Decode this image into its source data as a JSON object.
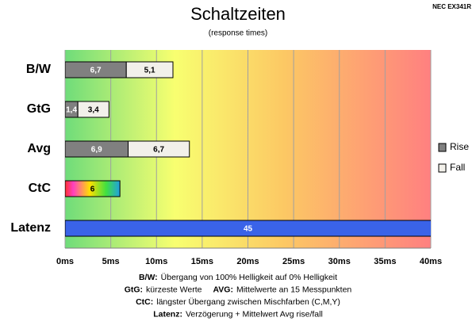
{
  "chart_data": {
    "type": "hbar_stacked",
    "title": "Schaltzeiten",
    "subtitle": "(response times)",
    "corner_label": "NEC EX341R",
    "categories": [
      "B/W",
      "GtG",
      "Avg",
      "CtC",
      "Latenz"
    ],
    "series": [
      {
        "name": "Rise",
        "color": "#808080",
        "values": [
          6.7,
          1.4,
          6.9,
          null,
          null
        ],
        "value_labels": [
          "6,7",
          "1,4",
          "6,9",
          null,
          null
        ]
      },
      {
        "name": "Fall",
        "color": "#f2f0ea",
        "values": [
          5.1,
          3.4,
          6.7,
          null,
          null
        ],
        "value_labels": [
          "5,1",
          "3,4",
          "6,7",
          null,
          null
        ]
      }
    ],
    "extra_bars": [
      {
        "fill": "rainbow",
        "values": [
          null,
          null,
          null,
          6,
          null
        ]
      },
      {
        "color": "#3a63e8",
        "values": [
          null,
          null,
          null,
          null,
          45
        ]
      }
    ],
    "xlim": [
      0,
      40
    ],
    "xticks": [
      {
        "value": 0,
        "label": "0ms"
      },
      {
        "value": 5,
        "label": "5ms"
      },
      {
        "value": 10,
        "label": "10ms"
      },
      {
        "value": 15,
        "label": "15ms"
      },
      {
        "value": 20,
        "label": "20ms"
      },
      {
        "value": 25,
        "label": "25ms"
      },
      {
        "value": 30,
        "label": "30ms"
      },
      {
        "value": 35,
        "label": "35ms"
      },
      {
        "value": 40,
        "label": "40ms"
      }
    ],
    "grid": true,
    "legend": "right",
    "notes": [
      [
        {
          "term": "B/W:",
          "text": "Übergang von 100% Helligkeit auf 0% Helligkeit"
        }
      ],
      [
        {
          "term": "GtG:",
          "text": "kürzeste Werte"
        },
        {
          "term": "AVG:",
          "text": "Mittelwerte an 15 Messpunkten"
        }
      ],
      [
        {
          "term": "CtC:",
          "text": "längster Übergang zwischen Mischfarben (C,M,Y)"
        }
      ],
      [
        {
          "term": "Latenz:",
          "text": "Verzögerung + Mittelwert Avg rise/fall"
        }
      ]
    ]
  }
}
